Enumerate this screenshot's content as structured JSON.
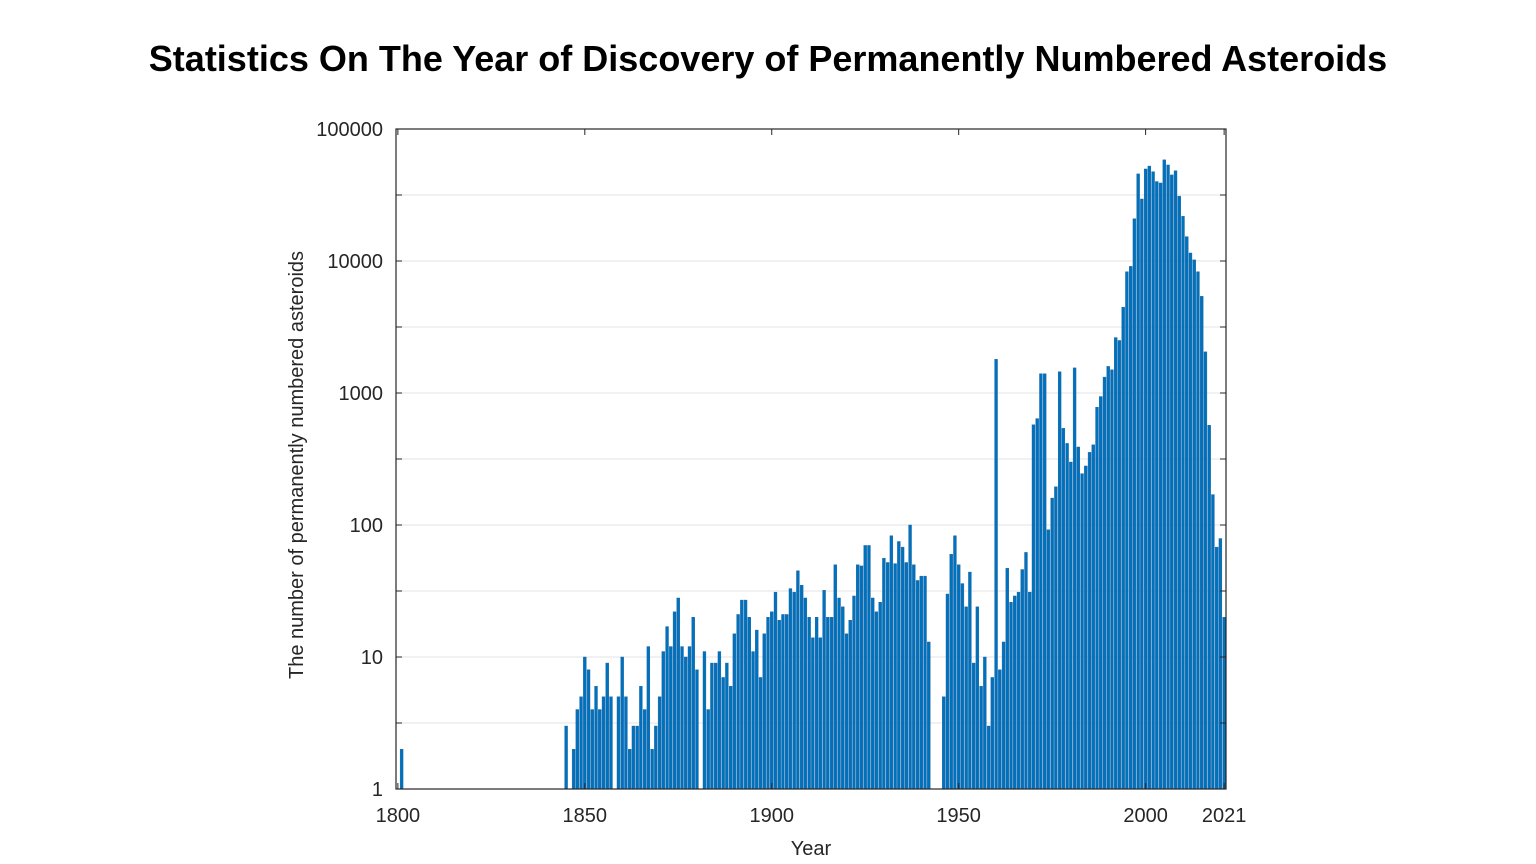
{
  "chart_data": {
    "type": "bar",
    "title": "Statistics On The Year of Discovery of Permanently Numbered Asteroids",
    "xlabel": "Year",
    "ylabel": "The number of permanently numbered asteroids",
    "xlim": [
      1800,
      2021
    ],
    "ylim": [
      1,
      100000
    ],
    "yscale": "log",
    "grid": true,
    "bar_color": "#0072BD",
    "xticks": [
      "1800",
      "1850",
      "1900",
      "1950",
      "2000",
      "2021"
    ],
    "yticks": [
      "1",
      "10",
      "100",
      "1000",
      "10000",
      "100000"
    ],
    "years": [
      1801,
      1845,
      1847,
      1848,
      1849,
      1850,
      1851,
      1852,
      1853,
      1854,
      1855,
      1856,
      1857,
      1859,
      1860,
      1861,
      1862,
      1863,
      1864,
      1865,
      1866,
      1867,
      1868,
      1869,
      1870,
      1871,
      1872,
      1873,
      1874,
      1875,
      1876,
      1877,
      1878,
      1879,
      1880,
      1882,
      1883,
      1884,
      1885,
      1886,
      1887,
      1888,
      1889,
      1890,
      1891,
      1892,
      1893,
      1894,
      1895,
      1896,
      1897,
      1898,
      1899,
      1900,
      1901,
      1902,
      1903,
      1904,
      1905,
      1906,
      1907,
      1908,
      1909,
      1910,
      1911,
      1912,
      1913,
      1914,
      1915,
      1916,
      1917,
      1918,
      1919,
      1920,
      1921,
      1922,
      1923,
      1924,
      1925,
      1926,
      1927,
      1928,
      1929,
      1930,
      1931,
      1932,
      1933,
      1934,
      1935,
      1936,
      1937,
      1938,
      1939,
      1940,
      1941,
      1942,
      1946,
      1947,
      1948,
      1949,
      1950,
      1951,
      1952,
      1953,
      1954,
      1955,
      1956,
      1957,
      1958,
      1959,
      1960,
      1961,
      1962,
      1963,
      1964,
      1965,
      1966,
      1967,
      1968,
      1969,
      1970,
      1971,
      1972,
      1973,
      1974,
      1975,
      1976,
      1977,
      1978,
      1979,
      1980,
      1981,
      1982,
      1983,
      1984,
      1985,
      1986,
      1987,
      1988,
      1989,
      1990,
      1991,
      1992,
      1993,
      1994,
      1995,
      1996,
      1997,
      1998,
      1999,
      2000,
      2001,
      2002,
      2003,
      2004,
      2005,
      2006,
      2007,
      2008,
      2009,
      2010,
      2011,
      2012,
      2013,
      2014,
      2015,
      2016,
      2017,
      2018,
      2019,
      2020,
      2021
    ],
    "values": [
      2,
      3,
      2,
      4,
      5,
      10,
      8,
      4,
      6,
      4,
      5,
      9,
      5,
      5,
      10,
      5,
      2,
      3,
      3,
      6,
      4,
      12,
      2,
      3,
      5,
      11,
      17,
      12,
      22,
      28,
      12,
      10,
      12,
      20,
      8,
      11,
      4,
      9,
      9,
      11,
      7,
      9,
      6,
      15,
      21,
      27,
      27,
      20,
      11,
      16,
      7,
      15,
      20,
      22,
      31,
      19,
      21,
      21,
      33,
      31,
      45,
      35,
      28,
      20,
      14,
      20,
      14,
      32,
      20,
      20,
      50,
      28,
      24,
      15,
      19,
      29,
      50,
      49,
      70,
      70,
      28,
      22,
      26,
      56,
      52,
      83,
      51,
      75,
      68,
      52,
      100,
      50,
      38,
      41,
      41,
      13,
      5,
      30,
      60,
      83,
      50,
      36,
      24,
      44,
      9,
      24,
      6,
      10,
      3,
      7,
      1800,
      8,
      13,
      47,
      26,
      29,
      31,
      46,
      62,
      31,
      575,
      640,
      1400,
      1400,
      92,
      160,
      195,
      1450,
      540,
      415,
      300,
      1550,
      390,
      245,
      280,
      355,
      405,
      780,
      940,
      1320,
      1590,
      1500,
      2630,
      2500,
      4470,
      8300,
      9100,
      20900,
      45700,
      29500,
      49800,
      52400,
      47500,
      40000,
      39000,
      58400,
      53400,
      44900,
      48300,
      31000,
      21800,
      15300,
      11500,
      10200,
      8300,
      5400,
      2050,
      570,
      170,
      68,
      79,
      20
    ]
  }
}
